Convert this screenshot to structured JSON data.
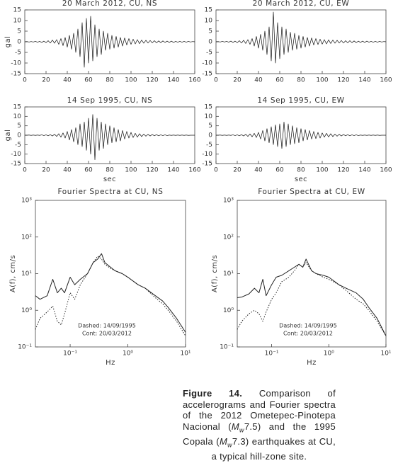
{
  "chart_data": [
    {
      "type": "line",
      "title": "20 March 2012, CU, NS",
      "ylabel": "gal",
      "x": [
        0,
        2,
        4,
        6,
        8,
        10,
        12,
        14,
        16,
        18,
        20,
        22,
        24,
        26,
        28,
        30,
        32,
        34,
        36,
        38,
        40,
        42,
        44,
        46,
        48,
        50,
        52,
        54,
        56,
        58,
        60,
        62,
        64,
        66,
        68,
        70,
        72,
        74,
        76,
        78,
        80,
        82,
        84,
        86,
        88,
        90,
        92,
        94,
        96,
        98,
        100,
        102,
        104,
        106,
        108,
        110,
        112,
        114,
        116,
        118,
        120,
        122,
        124,
        126,
        128,
        130,
        132,
        134,
        136,
        138,
        140,
        142,
        144,
        146,
        148,
        150,
        152,
        154,
        156,
        158,
        160
      ],
      "series": [
        {
          "color": "#111111",
          "values": [
            0,
            0.1,
            -0.1,
            0.1,
            -0.1,
            0.2,
            -0.2,
            0.2,
            -0.3,
            0.3,
            -0.4,
            0.5,
            -0.6,
            0.8,
            -0.7,
            1,
            -1.2,
            1.5,
            -1.8,
            2,
            -2.5,
            3,
            -3.5,
            4,
            -5,
            6,
            -7,
            9,
            -12,
            11,
            -10,
            12,
            -9,
            8,
            -7,
            6,
            -6,
            5,
            -4,
            4,
            -3.5,
            3,
            -3,
            2.5,
            -2.5,
            2,
            -2,
            1.8,
            -1.5,
            1.5,
            -1.2,
            1.2,
            -1,
            1,
            -0.9,
            0.8,
            -0.7,
            0.7,
            -0.6,
            0.6,
            -0.5,
            0.5,
            -0.5,
            0.4,
            -0.4,
            0.4,
            -0.3,
            0.3,
            -0.3,
            0.3,
            -0.3,
            0.2,
            -0.2,
            0.2,
            -0.2,
            0.2,
            -0.2,
            0.2,
            -0.1,
            0.1,
            0
          ]
        }
      ],
      "xlim": [
        0,
        160
      ],
      "ylim": [
        -15,
        15
      ],
      "xticks": [
        0,
        20,
        40,
        60,
        80,
        100,
        120,
        140,
        160
      ],
      "yticks": [
        15,
        10,
        5,
        0,
        -5,
        -10,
        -15
      ]
    },
    {
      "type": "line",
      "title": "20 March 2012, CU, EW",
      "x": [
        0,
        2,
        4,
        6,
        8,
        10,
        12,
        14,
        16,
        18,
        20,
        22,
        24,
        26,
        28,
        30,
        32,
        34,
        36,
        38,
        40,
        42,
        44,
        46,
        48,
        50,
        52,
        54,
        56,
        58,
        60,
        62,
        64,
        66,
        68,
        70,
        72,
        74,
        76,
        78,
        80,
        82,
        84,
        86,
        88,
        90,
        92,
        94,
        96,
        98,
        100,
        102,
        104,
        106,
        108,
        110,
        112,
        114,
        116,
        118,
        120,
        122,
        124,
        126,
        128,
        130,
        132,
        134,
        136,
        138,
        140,
        142,
        144,
        146,
        148,
        150,
        152,
        154,
        156,
        158,
        160
      ],
      "series": [
        {
          "color": "#111111",
          "values": [
            0,
            0.1,
            -0.1,
            0.2,
            -0.1,
            0.2,
            -0.2,
            0.3,
            -0.3,
            0.3,
            -0.4,
            0.5,
            -0.6,
            0.7,
            -0.8,
            1,
            -1.2,
            1.5,
            -2,
            2.5,
            -3,
            3.5,
            -4,
            5,
            -6,
            7,
            -9,
            14,
            -10,
            9,
            -8,
            7,
            -6,
            6,
            -5,
            4.5,
            -4,
            4,
            -3.5,
            3,
            -3,
            2.5,
            -2.5,
            2,
            -2,
            1.8,
            -1.5,
            1.5,
            -1.3,
            1.2,
            -1.1,
            1,
            -1,
            0.9,
            -0.8,
            0.8,
            -0.7,
            0.7,
            -0.6,
            0.6,
            -0.6,
            0.5,
            -0.5,
            0.5,
            -0.4,
            0.4,
            -0.4,
            0.3,
            -0.3,
            0.3,
            -0.3,
            0.3,
            -0.2,
            0.2,
            -0.2,
            0.2,
            -0.2,
            0.2,
            -0.1,
            0.1,
            0
          ]
        }
      ],
      "xlim": [
        0,
        160
      ],
      "ylim": [
        -15,
        15
      ],
      "xticks": [
        0,
        20,
        40,
        60,
        80,
        100,
        120,
        140,
        160
      ],
      "yticks": [
        15,
        10,
        5,
        0,
        -5,
        -10,
        -15
      ]
    },
    {
      "type": "line",
      "title": "14 Sep 1995, CU, NS",
      "ylabel": "gal",
      "xlabel": "sec",
      "x": [
        0,
        2,
        4,
        6,
        8,
        10,
        12,
        14,
        16,
        18,
        20,
        22,
        24,
        26,
        28,
        30,
        32,
        34,
        36,
        38,
        40,
        42,
        44,
        46,
        48,
        50,
        52,
        54,
        56,
        58,
        60,
        62,
        64,
        66,
        68,
        70,
        72,
        74,
        76,
        78,
        80,
        82,
        84,
        86,
        88,
        90,
        92,
        94,
        96,
        98,
        100,
        102,
        104,
        106,
        108,
        110,
        112,
        114,
        116,
        118,
        120,
        122,
        124,
        126,
        128,
        130,
        132,
        134,
        136,
        138,
        140,
        142,
        144,
        146,
        148,
        150,
        152,
        154,
        156,
        158,
        160
      ],
      "series": [
        {
          "color": "#111111",
          "values": [
            0,
            0,
            0.1,
            -0.1,
            0.1,
            -0.1,
            0.1,
            -0.1,
            0.2,
            -0.2,
            0.2,
            -0.3,
            0.3,
            -0.4,
            0.5,
            -0.6,
            0.8,
            -1,
            1.2,
            -1.5,
            2,
            -2.5,
            3,
            -3.5,
            4,
            -5,
            6,
            -6,
            7,
            -8,
            9,
            -10,
            11,
            -13,
            9,
            -8,
            7,
            -7,
            6,
            -5,
            5,
            -4,
            4,
            -3.5,
            3,
            -3,
            2.5,
            -2,
            2,
            -1.5,
            1.5,
            -1.2,
            1,
            -1,
            0.8,
            -0.7,
            0.6,
            -0.5,
            0.5,
            -0.4,
            0.4,
            -0.3,
            0.3,
            -0.3,
            0.2,
            -0.2,
            0.2,
            -0.2,
            0.1,
            -0.1,
            0.1,
            -0.1,
            0.1,
            -0.1,
            0.1,
            -0.1,
            0.1,
            -0.1,
            0,
            0,
            0
          ]
        }
      ],
      "xlim": [
        0,
        160
      ],
      "ylim": [
        -15,
        15
      ],
      "xticks": [
        0,
        20,
        40,
        60,
        80,
        100,
        120,
        140,
        160
      ],
      "yticks": [
        15,
        10,
        5,
        0,
        -5,
        -10,
        -15
      ]
    },
    {
      "type": "line",
      "title": "14 Sep 1995, CU, EW",
      "xlabel": "sec",
      "x": [
        0,
        2,
        4,
        6,
        8,
        10,
        12,
        14,
        16,
        18,
        20,
        22,
        24,
        26,
        28,
        30,
        32,
        34,
        36,
        38,
        40,
        42,
        44,
        46,
        48,
        50,
        52,
        54,
        56,
        58,
        60,
        62,
        64,
        66,
        68,
        70,
        72,
        74,
        76,
        78,
        80,
        82,
        84,
        86,
        88,
        90,
        92,
        94,
        96,
        98,
        100,
        102,
        104,
        106,
        108,
        110,
        112,
        114,
        116,
        118,
        120,
        122,
        124,
        126,
        128,
        130,
        132,
        134,
        136,
        138,
        140,
        142,
        144,
        146,
        148,
        150,
        152,
        154,
        156,
        158,
        160
      ],
      "series": [
        {
          "color": "#111111",
          "values": [
            0,
            0,
            0.1,
            -0.1,
            0.1,
            -0.1,
            0.1,
            -0.1,
            0.2,
            -0.2,
            0.2,
            -0.3,
            0.3,
            -0.4,
            0.5,
            -0.6,
            0.7,
            -0.8,
            1,
            -1.2,
            1.5,
            -2,
            2.5,
            -3,
            3.5,
            -4,
            4.5,
            -5,
            5.5,
            -6,
            6,
            -7,
            7,
            -6,
            6,
            -5,
            5,
            -4.5,
            4,
            -4,
            3.5,
            -3,
            3,
            -2.5,
            2.5,
            -2,
            2,
            -1.8,
            1.5,
            -1.5,
            1.2,
            -1,
            1,
            -0.9,
            0.8,
            -0.7,
            0.6,
            -0.5,
            0.5,
            -0.4,
            0.4,
            -0.3,
            0.3,
            -0.3,
            0.2,
            -0.2,
            0.2,
            -0.2,
            0.1,
            -0.1,
            0.1,
            -0.1,
            0.1,
            -0.1,
            0.1,
            -0.1,
            0.1,
            -0.1,
            0,
            0,
            0
          ]
        }
      ],
      "xlim": [
        0,
        160
      ],
      "ylim": [
        -15,
        15
      ],
      "xticks": [
        0,
        20,
        40,
        60,
        80,
        100,
        120,
        140,
        160
      ],
      "yticks": [
        15,
        10,
        5,
        0,
        -5,
        -10,
        -15
      ]
    },
    {
      "type": "logline",
      "title": "Fourier Spectra at CU, NS",
      "ylabel": "A(f), cm/s",
      "xlabel": "Hz",
      "xscale": "log",
      "yscale": "log",
      "x": [
        0.025,
        0.03,
        0.04,
        0.05,
        0.06,
        0.07,
        0.08,
        0.1,
        0.12,
        0.15,
        0.2,
        0.25,
        0.3,
        0.35,
        0.4,
        0.5,
        0.6,
        0.8,
        1,
        1.5,
        2,
        3,
        4,
        5,
        7,
        10
      ],
      "series": [
        {
          "name": "Dashed: 14/09/1995",
          "color": "#222222",
          "dash": "dotted",
          "values": [
            0.3,
            0.6,
            0.9,
            1.3,
            0.5,
            0.4,
            0.8,
            3,
            2,
            5,
            10,
            20,
            30,
            25,
            18,
            14,
            12,
            10,
            8,
            5,
            4,
            2.2,
            1.5,
            1,
            0.5,
            0.2
          ]
        },
        {
          "name": "Cont: 20/03/2012",
          "color": "#222222",
          "dash": "solid",
          "values": [
            2.5,
            2,
            2.5,
            7,
            3,
            4,
            3,
            8,
            5,
            7,
            10,
            20,
            25,
            35,
            20,
            15,
            12,
            10,
            8,
            5,
            4,
            2.5,
            1.8,
            1.2,
            0.6,
            0.25
          ]
        }
      ],
      "xlim": [
        0.025,
        10
      ],
      "ylim": [
        0.1,
        1000
      ],
      "xticks": [
        {
          "value": 0.1,
          "label": "10⁻¹"
        },
        {
          "value": 1,
          "label": "10⁰"
        },
        {
          "value": 10,
          "label": "10¹"
        }
      ],
      "yticks": [
        {
          "value": 0.1,
          "label": "10⁻¹"
        },
        {
          "value": 1,
          "label": "10⁰"
        },
        {
          "value": 10,
          "label": "10¹"
        },
        {
          "value": 100,
          "label": "10²"
        },
        {
          "value": 1000,
          "label": "10³"
        }
      ]
    },
    {
      "type": "logline",
      "title": "Fourier Spectra at CU, EW",
      "ylabel": "A(f), cm/s",
      "xlabel": "Hz",
      "xscale": "log",
      "yscale": "log",
      "x": [
        0.025,
        0.03,
        0.04,
        0.05,
        0.06,
        0.07,
        0.08,
        0.1,
        0.12,
        0.15,
        0.2,
        0.25,
        0.3,
        0.35,
        0.4,
        0.5,
        0.6,
        0.8,
        1,
        1.5,
        2,
        3,
        4,
        5,
        7,
        10
      ],
      "series": [
        {
          "name": "Dashed: 14/09/1995",
          "color": "#222222",
          "dash": "dotted",
          "values": [
            0.3,
            0.5,
            0.8,
            1,
            0.8,
            0.5,
            0.9,
            2,
            3,
            6,
            8,
            12,
            18,
            15,
            20,
            12,
            10,
            8,
            7,
            5,
            3.5,
            2,
            1.5,
            1,
            0.5,
            0.2
          ]
        },
        {
          "name": "Cont: 20/03/2012",
          "color": "#222222",
          "dash": "solid",
          "values": [
            2.2,
            2.3,
            2.8,
            4,
            3,
            7,
            2.5,
            5,
            8,
            9,
            12,
            15,
            18,
            15,
            25,
            12,
            10,
            9,
            8,
            5,
            4,
            3,
            2,
            1.2,
            0.6,
            0.2
          ]
        }
      ],
      "xlim": [
        0.025,
        10
      ],
      "ylim": [
        0.1,
        1000
      ],
      "xticks": [
        {
          "value": 0.1,
          "label": "10⁻¹"
        },
        {
          "value": 1,
          "label": "10⁰"
        },
        {
          "value": 10,
          "label": "10¹"
        }
      ],
      "yticks": [
        {
          "value": 0.1,
          "label": "10⁻¹"
        },
        {
          "value": 1,
          "label": "10⁰"
        },
        {
          "value": 10,
          "label": "10¹"
        },
        {
          "value": 100,
          "label": "10²"
        },
        {
          "value": 1000,
          "label": "10³"
        }
      ]
    }
  ],
  "caption": {
    "label": "Figure 14.",
    "text": [
      "Comparison of accelerograms and Fourier spectra of the 2012 Ometepec-Pinotepa Nacional (",
      "M",
      "w",
      "7.5) and the 1995 Copala (",
      "M",
      "w",
      "7.3) earthquakes at CU, a typical hill-zone site."
    ]
  }
}
